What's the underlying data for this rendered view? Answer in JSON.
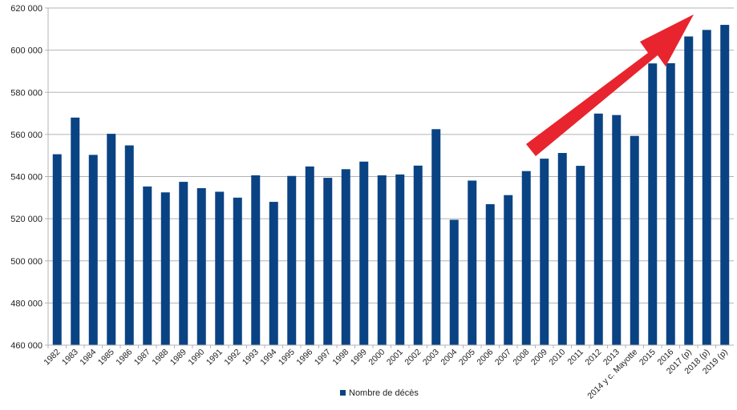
{
  "chart_data": {
    "type": "bar",
    "categories": [
      "1982",
      "1983",
      "1984",
      "1985",
      "1986",
      "1987",
      "1988",
      "1989",
      "1990",
      "1991",
      "1992",
      "1993",
      "1994",
      "1995",
      "1996",
      "1997",
      "1998",
      "1999",
      "2000",
      "2001",
      "2002",
      "2003",
      "2004",
      "2005",
      "2006",
      "2007",
      "2008",
      "2009",
      "2010",
      "2011",
      "2012",
      "2013",
      "2014 y c. Mayotte",
      "2015",
      "2016",
      "2017 (p)",
      "2018 (p)",
      "2019 (p)"
    ],
    "series": [
      {
        "name": "Nombre de décès",
        "values": [
          550600,
          568000,
          550300,
          560300,
          554800,
          535300,
          532500,
          537500,
          534500,
          532800,
          530000,
          540600,
          528000,
          540300,
          544800,
          539400,
          543500,
          547100,
          540600,
          541000,
          545200,
          562500,
          519500,
          538100,
          526900,
          531200,
          542600,
          548500,
          551200,
          545100,
          569900,
          569200,
          559300,
          593700,
          593800,
          606500,
          609600,
          612000
        ]
      }
    ],
    "ylim": [
      460000,
      620000
    ],
    "yticks": [
      "460 000",
      "480 000",
      "500 000",
      "520 000",
      "540 000",
      "560 000",
      "580 000",
      "600 000",
      "620 000"
    ],
    "ytick_values": [
      460000,
      480000,
      500000,
      520000,
      540000,
      560000,
      580000,
      600000,
      620000
    ],
    "grid": true,
    "legend": "bottom-center",
    "bar_color": "#0a4383",
    "arrow_color": "#e8242e"
  }
}
